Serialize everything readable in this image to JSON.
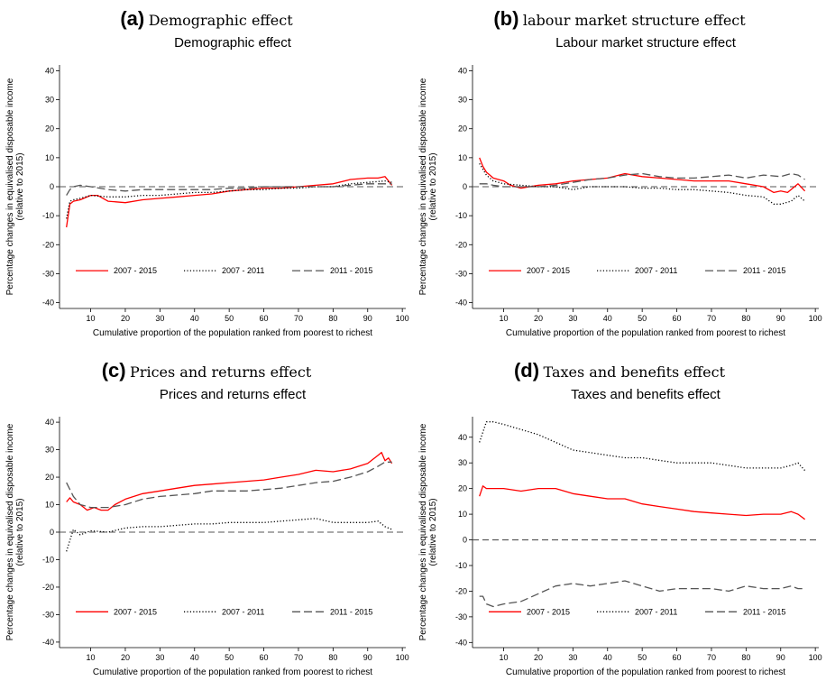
{
  "chart_data": [
    {
      "type": "line",
      "panel_letter": "(a)",
      "caption": "Demographic effect",
      "title": "Demographic effect",
      "xlabel": "Cumulative proportion of the population ranked from poorest to richest",
      "ylabel": "Percentage changes in equivalised disposable income\n(relative to 2015)",
      "xlim": [
        1,
        101
      ],
      "ylim": [
        -42,
        42
      ],
      "xticks": [
        10,
        20,
        30,
        40,
        50,
        60,
        70,
        80,
        90,
        100
      ],
      "yticks": [
        -40,
        -30,
        -20,
        -10,
        0,
        10,
        20,
        30,
        40
      ],
      "legend_position": "bottom",
      "series": [
        {
          "name": "2007 - 2015",
          "color": "#ff0000",
          "style": "solid",
          "x": [
            3,
            4,
            5,
            7,
            10,
            12,
            15,
            20,
            25,
            30,
            35,
            40,
            45,
            50,
            55,
            60,
            65,
            70,
            75,
            80,
            85,
            90,
            93,
            95,
            97
          ],
          "y": [
            -14,
            -6,
            -5,
            -4.5,
            -3,
            -3,
            -5,
            -5.5,
            -4.5,
            -4,
            -3.5,
            -3,
            -2.5,
            -1.5,
            -1,
            -0.5,
            -0.5,
            0,
            0.5,
            1,
            2.5,
            3,
            3,
            3.5,
            0.5
          ]
        },
        {
          "name": "2007 - 2011",
          "color": "#000000",
          "style": "dotted",
          "x": [
            3,
            4,
            5,
            7,
            10,
            15,
            20,
            25,
            30,
            35,
            40,
            45,
            50,
            55,
            60,
            65,
            70,
            75,
            80,
            85,
            90,
            95,
            97
          ],
          "y": [
            -11,
            -5,
            -4.5,
            -4,
            -3,
            -3.5,
            -3.5,
            -3,
            -3,
            -2.5,
            -2,
            -2,
            -1.5,
            -1,
            -1,
            -0.5,
            -0.5,
            0,
            0,
            1,
            1.5,
            2,
            1.5
          ]
        },
        {
          "name": "2011 - 2015",
          "color": "#555555",
          "style": "dashed",
          "x": [
            3,
            4,
            5,
            7,
            10,
            15,
            20,
            25,
            30,
            35,
            40,
            45,
            50,
            55,
            60,
            65,
            70,
            75,
            80,
            85,
            90,
            95,
            97
          ],
          "y": [
            -3,
            -1,
            0,
            0.5,
            0,
            -1,
            -1.5,
            -1,
            -1,
            -1,
            -1,
            -1,
            -0.5,
            -0.5,
            0,
            0,
            0,
            0,
            0,
            0.5,
            1,
            1,
            1
          ]
        }
      ]
    },
    {
      "type": "line",
      "panel_letter": "(b)",
      "caption": "labour market structure effect",
      "title": "Labour market structure effect",
      "xlabel": "Cumulative proportion of the population ranked from poorest to richest",
      "ylabel": "Percentage changes in equivalised disposable income\n(relative to 2015)",
      "xlim": [
        1,
        101
      ],
      "ylim": [
        -42,
        42
      ],
      "xticks": [
        10,
        20,
        30,
        40,
        50,
        60,
        70,
        80,
        90,
        100
      ],
      "yticks": [
        -40,
        -30,
        -20,
        -10,
        0,
        10,
        20,
        30,
        40
      ],
      "legend_position": "bottom",
      "series": [
        {
          "name": "2007 - 2015",
          "color": "#ff0000",
          "style": "solid",
          "x": [
            3,
            4,
            5,
            7,
            10,
            12,
            15,
            20,
            25,
            30,
            35,
            40,
            45,
            50,
            55,
            60,
            65,
            70,
            75,
            80,
            85,
            88,
            90,
            92,
            95,
            97
          ],
          "y": [
            10,
            7,
            5,
            3,
            2,
            0.5,
            -0.5,
            0.5,
            1,
            2,
            2.5,
            3,
            4.5,
            3.5,
            3,
            2.5,
            2,
            2,
            2,
            1,
            0,
            -2,
            -1.5,
            -2,
            1,
            -1.5
          ]
        },
        {
          "name": "2007 - 2011",
          "color": "#000000",
          "style": "dotted",
          "x": [
            3,
            5,
            7,
            10,
            15,
            20,
            25,
            30,
            35,
            40,
            45,
            50,
            55,
            60,
            65,
            70,
            75,
            80,
            85,
            88,
            90,
            93,
            95,
            97
          ],
          "y": [
            8,
            4,
            2,
            1,
            0.5,
            0,
            0,
            -1,
            0,
            0,
            0,
            -0.5,
            -0.5,
            -1,
            -1,
            -1.5,
            -2,
            -3,
            -3.5,
            -6,
            -6,
            -5,
            -3,
            -5
          ]
        },
        {
          "name": "2011 - 2015",
          "color": "#555555",
          "style": "dashed",
          "x": [
            3,
            5,
            7,
            10,
            15,
            20,
            25,
            30,
            35,
            40,
            45,
            50,
            55,
            60,
            65,
            70,
            75,
            80,
            85,
            90,
            93,
            95,
            97
          ],
          "y": [
            1,
            1,
            0.5,
            0,
            0,
            0,
            0.5,
            1.5,
            2.5,
            3,
            4,
            4.5,
            3.5,
            3,
            3,
            3.5,
            4,
            3,
            4,
            3.5,
            4.5,
            4,
            2.5
          ]
        }
      ]
    },
    {
      "type": "line",
      "panel_letter": "(c)",
      "caption": "Prices and returns effect",
      "title": "Prices and returns effect",
      "xlabel": "Cumulative proportion of the population ranked from poorest to richest",
      "ylabel": "Percentage changes in equivalised disposable income\n(relative to 2015)",
      "xlim": [
        1,
        101
      ],
      "ylim": [
        -42,
        42
      ],
      "xticks": [
        10,
        20,
        30,
        40,
        50,
        60,
        70,
        80,
        90,
        100
      ],
      "yticks": [
        -40,
        -30,
        -20,
        -10,
        0,
        10,
        20,
        30,
        40
      ],
      "legend_position": "bottom",
      "series": [
        {
          "name": "2007 - 2015",
          "color": "#ff0000",
          "style": "solid",
          "x": [
            3,
            4,
            5,
            7,
            9,
            11,
            13,
            15,
            17,
            20,
            25,
            30,
            35,
            40,
            45,
            50,
            55,
            60,
            65,
            70,
            75,
            80,
            85,
            90,
            93,
            94,
            95,
            96,
            97
          ],
          "y": [
            11,
            12.5,
            11,
            10,
            8,
            9,
            8,
            8,
            10,
            12,
            14,
            15,
            16,
            17,
            17.5,
            18,
            18.5,
            19,
            20,
            21,
            22.5,
            22,
            23,
            25,
            28,
            29,
            26,
            27,
            25
          ]
        },
        {
          "name": "2007 - 2011",
          "color": "#000000",
          "style": "dotted",
          "x": [
            3,
            4,
            5,
            7,
            10,
            15,
            20,
            25,
            30,
            35,
            40,
            45,
            50,
            55,
            60,
            65,
            70,
            75,
            80,
            85,
            90,
            93,
            95,
            97
          ],
          "y": [
            -7,
            -3,
            1,
            -1,
            0.5,
            0,
            1.5,
            2,
            2,
            2.5,
            3,
            3,
            3.5,
            3.5,
            3.5,
            4,
            4.5,
            5,
            3.5,
            3.5,
            3.5,
            4,
            2,
            1
          ]
        },
        {
          "name": "2011 - 2015",
          "color": "#555555",
          "style": "dashed",
          "x": [
            3,
            5,
            7,
            10,
            15,
            20,
            25,
            30,
            35,
            40,
            45,
            50,
            55,
            60,
            65,
            70,
            75,
            80,
            85,
            90,
            93,
            95,
            97
          ],
          "y": [
            18,
            13,
            10,
            9,
            9,
            10,
            12,
            13,
            13.5,
            14,
            15,
            15,
            15,
            15.5,
            16,
            17,
            18,
            18.5,
            20,
            22,
            24,
            25.5,
            25.5
          ]
        }
      ]
    },
    {
      "type": "line",
      "panel_letter": "(d)",
      "caption": "Taxes and benefits effect",
      "title": "Taxes and benefits effect",
      "xlabel": "Cumulative proportion of the population ranked from poorest to richest",
      "ylabel": "Percentage changes in equivalised disposable income\n(relative to 2015)",
      "xlim": [
        1,
        101
      ],
      "ylim": [
        -42,
        48
      ],
      "xticks": [
        10,
        20,
        30,
        40,
        50,
        60,
        70,
        80,
        90,
        100
      ],
      "yticks": [
        -40,
        -30,
        -20,
        -10,
        0,
        10,
        20,
        30,
        40
      ],
      "legend_position": "bottom",
      "series": [
        {
          "name": "2007 - 2015",
          "color": "#ff0000",
          "style": "solid",
          "x": [
            3,
            4,
            5,
            7,
            10,
            15,
            20,
            25,
            30,
            35,
            40,
            45,
            50,
            55,
            60,
            65,
            70,
            75,
            80,
            85,
            90,
            93,
            95,
            97
          ],
          "y": [
            17,
            21,
            20,
            20,
            20,
            19,
            20,
            20,
            18,
            17,
            16,
            16,
            14,
            13,
            12,
            11,
            10.5,
            10,
            9.5,
            10,
            10,
            11,
            10,
            8
          ]
        },
        {
          "name": "2007 - 2011",
          "color": "#000000",
          "style": "dotted",
          "x": [
            3,
            4,
            5,
            7,
            10,
            15,
            20,
            25,
            30,
            35,
            40,
            45,
            50,
            55,
            60,
            65,
            70,
            75,
            80,
            85,
            90,
            93,
            95,
            97
          ],
          "y": [
            38,
            42,
            46,
            46,
            45,
            43,
            41,
            38,
            35,
            34,
            33,
            32,
            32,
            31,
            30,
            30,
            30,
            29,
            28,
            28,
            28,
            29,
            30,
            27
          ]
        },
        {
          "name": "2011 - 2015",
          "color": "#555555",
          "style": "dashed",
          "x": [
            3,
            4,
            5,
            7,
            10,
            15,
            20,
            25,
            30,
            35,
            40,
            45,
            50,
            55,
            60,
            65,
            70,
            75,
            80,
            85,
            90,
            93,
            95,
            97
          ],
          "y": [
            -22,
            -22,
            -25,
            -26,
            -25,
            -24,
            -21,
            -18,
            -17,
            -18,
            -17,
            -16,
            -18,
            -20,
            -19,
            -19,
            -19,
            -20,
            -18,
            -19,
            -19,
            -18,
            -19,
            -19
          ]
        }
      ]
    }
  ]
}
